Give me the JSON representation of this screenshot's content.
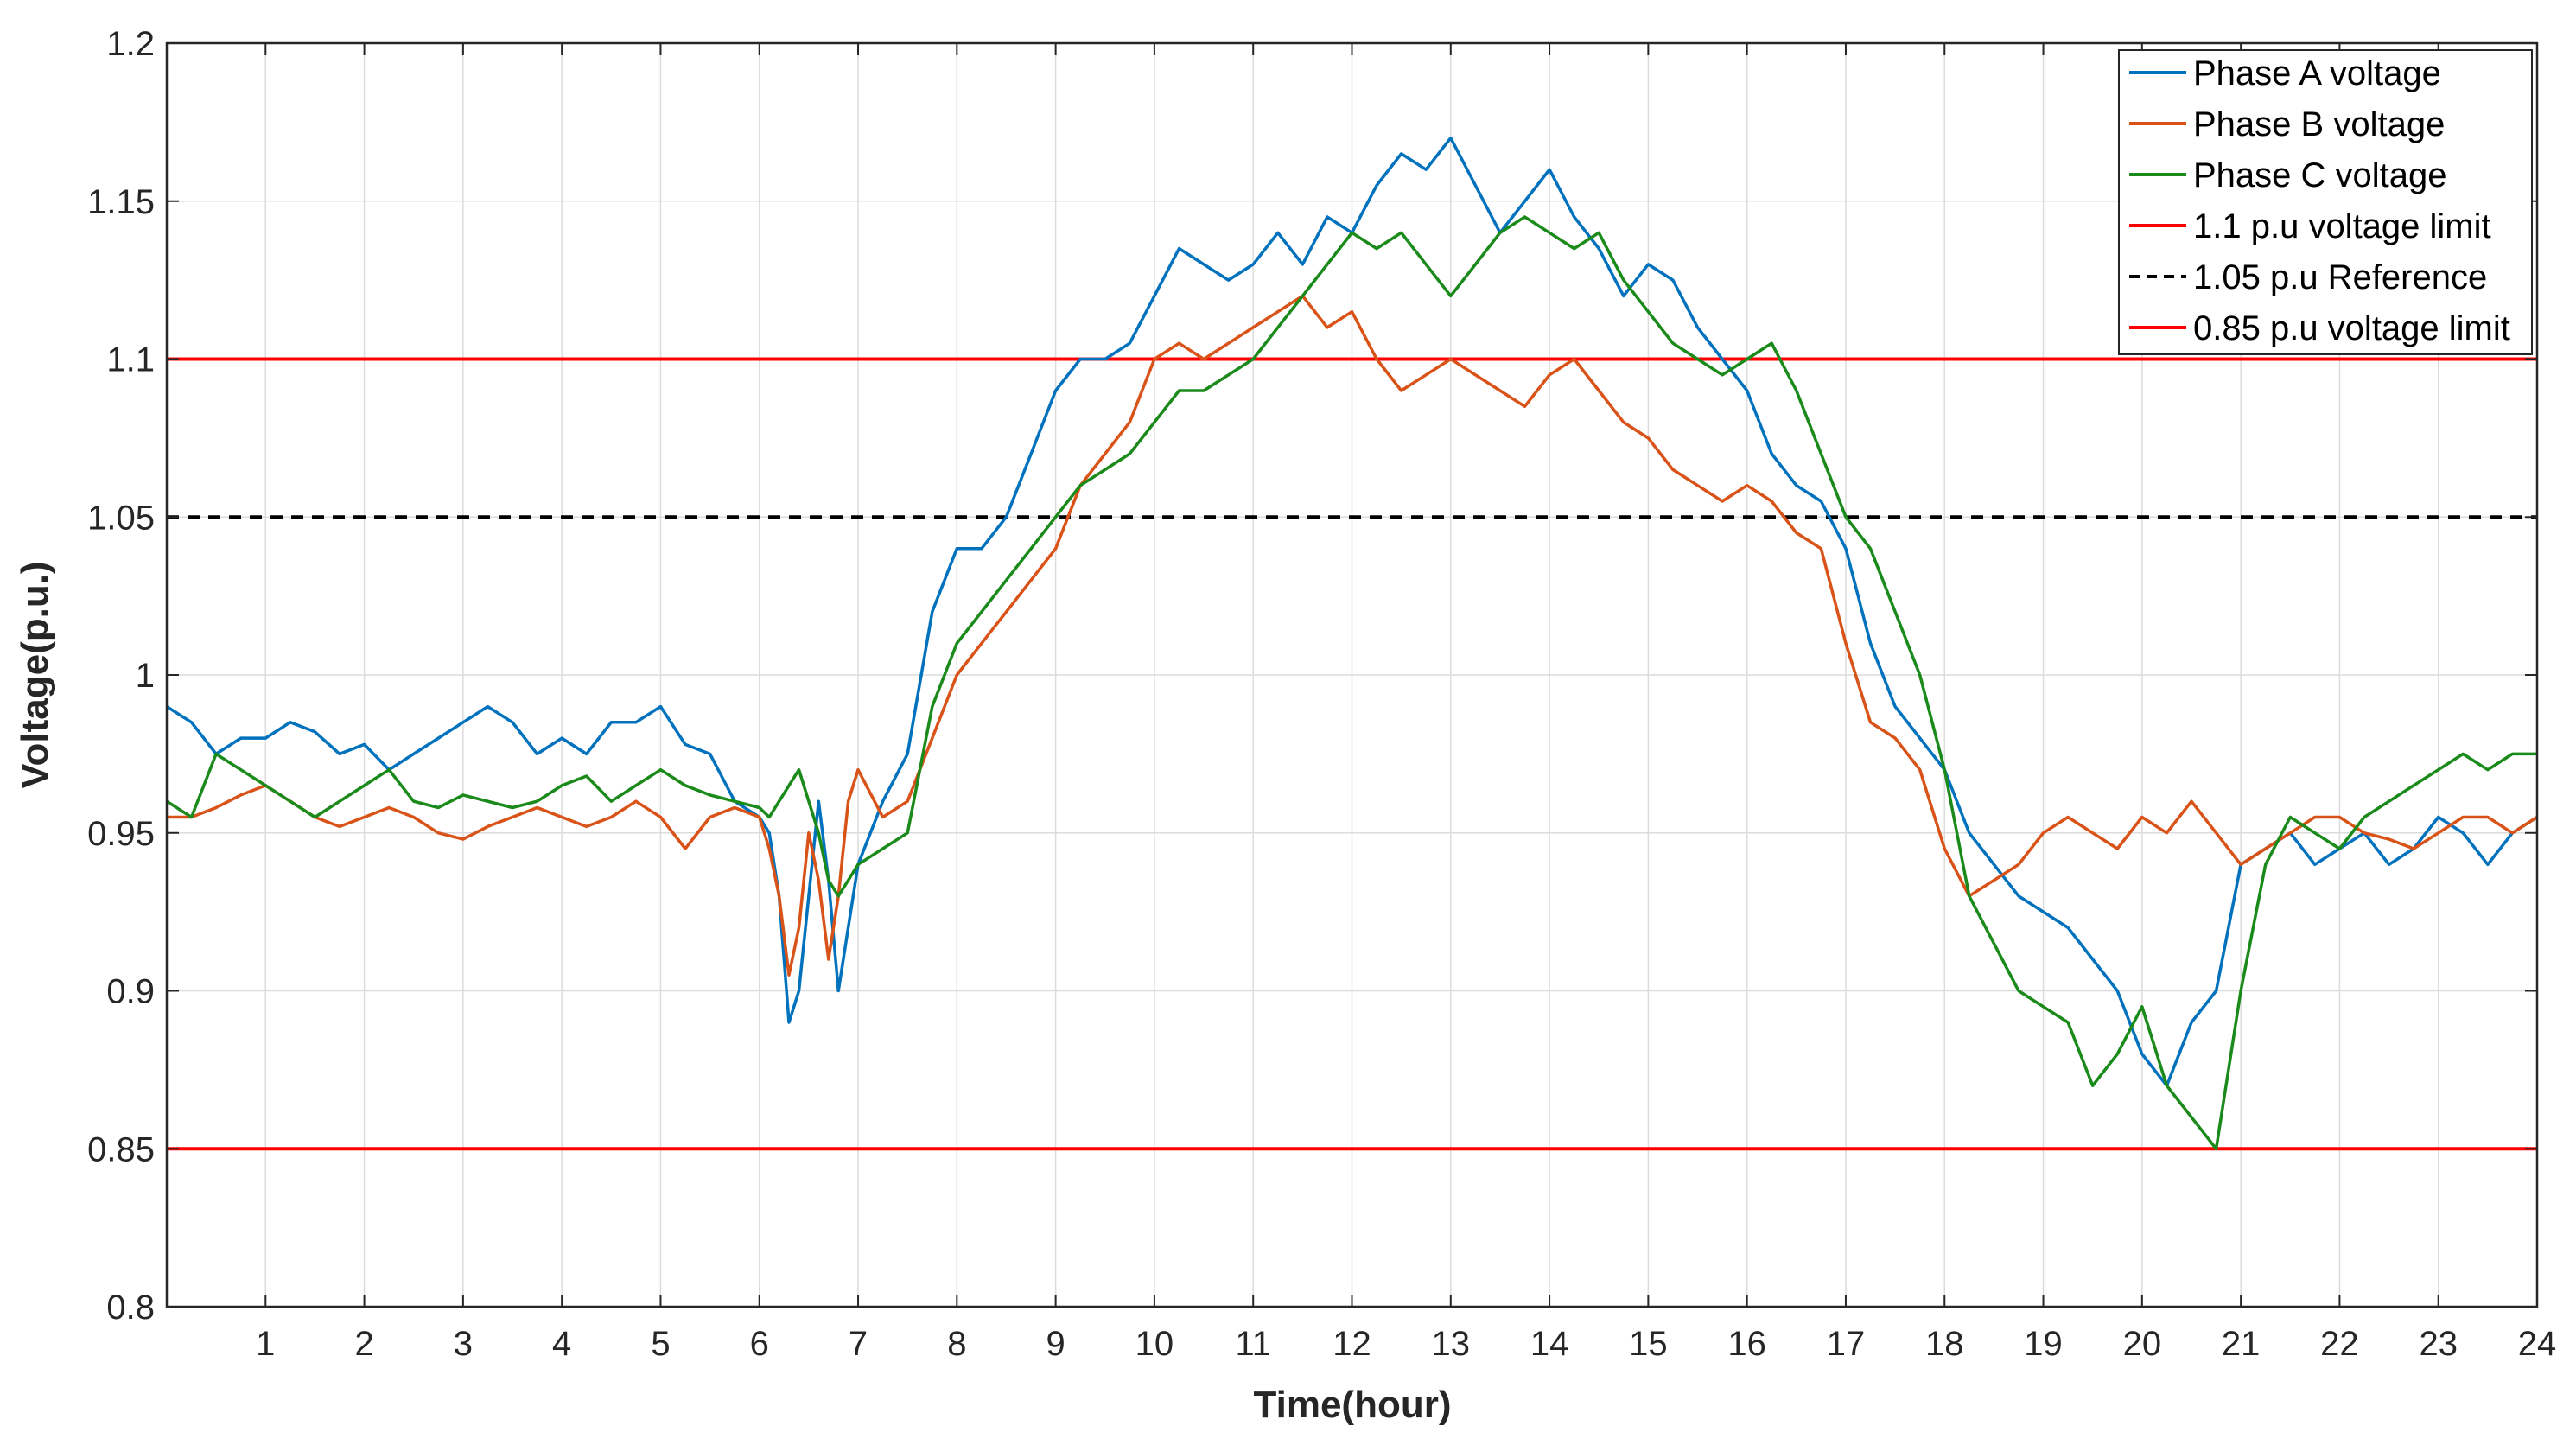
{
  "chart_data": {
    "type": "line",
    "title": "",
    "xlabel": "Time(hour)",
    "ylabel": "Voltage(p.u.)",
    "xlim": [
      0,
      24
    ],
    "ylim": [
      0.8,
      1.2
    ],
    "xticks": [
      1,
      2,
      3,
      4,
      5,
      6,
      7,
      8,
      9,
      10,
      11,
      12,
      13,
      14,
      15,
      16,
      17,
      18,
      19,
      20,
      21,
      22,
      23,
      24
    ],
    "xtick_labels": [
      "1",
      "2",
      "3",
      "4",
      "5",
      "6",
      "7",
      "8",
      "9",
      "10",
      "11",
      "12",
      "13",
      "14",
      "15",
      "16",
      "17",
      "18",
      "19",
      "20",
      "21",
      "22",
      "23",
      "24"
    ],
    "yticks": [
      0.8,
      0.85,
      0.9,
      0.95,
      1,
      1.05,
      1.1,
      1.15,
      1.2
    ],
    "ytick_labels": [
      "0.8",
      "0.85",
      "0.9",
      "0.95",
      "1",
      "1.05",
      "1.1",
      "1.15",
      "1.2"
    ],
    "grid": true,
    "legend_position": "top-right",
    "colors": {
      "phase_a": "#0072BD",
      "phase_b": "#D95319",
      "phase_c": "#1A8A1A",
      "limit": "#FF0000",
      "reference": "#000000"
    },
    "series": [
      {
        "name": "Phase A voltage",
        "color": "#0072BD",
        "style": "solid",
        "x": [
          0,
          0.25,
          0.5,
          0.75,
          1,
          1.25,
          1.5,
          1.75,
          2,
          2.25,
          2.5,
          2.75,
          3,
          3.25,
          3.5,
          3.75,
          4,
          4.25,
          4.5,
          4.75,
          5,
          5.25,
          5.5,
          5.75,
          6,
          6.1,
          6.2,
          6.3,
          6.4,
          6.5,
          6.6,
          6.7,
          6.8,
          6.9,
          7,
          7.25,
          7.5,
          7.75,
          8,
          8.25,
          8.5,
          8.75,
          9,
          9.25,
          9.5,
          9.75,
          10,
          10.25,
          10.5,
          10.75,
          11,
          11.25,
          11.5,
          11.75,
          12,
          12.25,
          12.5,
          12.75,
          13,
          13.25,
          13.5,
          13.75,
          14,
          14.25,
          14.5,
          14.75,
          15,
          15.25,
          15.5,
          15.75,
          16,
          16.25,
          16.5,
          16.75,
          17,
          17.25,
          17.5,
          17.75,
          18,
          18.25,
          18.5,
          18.75,
          19,
          19.25,
          19.5,
          19.75,
          20,
          20.25,
          20.5,
          20.75,
          21,
          21.25,
          21.5,
          21.75,
          22,
          22.25,
          22.5,
          22.75,
          23,
          23.25,
          23.5,
          23.75,
          24
        ],
        "values": [
          0.99,
          0.985,
          0.975,
          0.98,
          0.98,
          0.985,
          0.982,
          0.975,
          0.978,
          0.97,
          0.975,
          0.98,
          0.985,
          0.99,
          0.985,
          0.975,
          0.98,
          0.975,
          0.985,
          0.985,
          0.99,
          0.978,
          0.975,
          0.96,
          0.955,
          0.95,
          0.93,
          0.89,
          0.9,
          0.93,
          0.96,
          0.935,
          0.9,
          0.92,
          0.94,
          0.96,
          0.975,
          1.02,
          1.04,
          1.04,
          1.05,
          1.07,
          1.09,
          1.1,
          1.1,
          1.105,
          1.12,
          1.135,
          1.13,
          1.125,
          1.13,
          1.14,
          1.13,
          1.145,
          1.14,
          1.155,
          1.165,
          1.16,
          1.17,
          1.155,
          1.14,
          1.15,
          1.16,
          1.145,
          1.135,
          1.12,
          1.13,
          1.125,
          1.11,
          1.1,
          1.09,
          1.07,
          1.06,
          1.055,
          1.04,
          1.01,
          0.99,
          0.98,
          0.97,
          0.95,
          0.94,
          0.93,
          0.925,
          0.92,
          0.91,
          0.9,
          0.88,
          0.87,
          0.89,
          0.9,
          0.94,
          0.945,
          0.95,
          0.94,
          0.945,
          0.95,
          0.94,
          0.945,
          0.955,
          0.95,
          0.94,
          0.95,
          0.955
        ]
      },
      {
        "name": "Phase B voltage",
        "color": "#D95319",
        "style": "solid",
        "x": [
          0,
          0.25,
          0.5,
          0.75,
          1,
          1.25,
          1.5,
          1.75,
          2,
          2.25,
          2.5,
          2.75,
          3,
          3.25,
          3.5,
          3.75,
          4,
          4.25,
          4.5,
          4.75,
          5,
          5.25,
          5.5,
          5.75,
          6,
          6.1,
          6.2,
          6.3,
          6.4,
          6.5,
          6.6,
          6.7,
          6.8,
          6.9,
          7,
          7.25,
          7.5,
          7.75,
          8,
          8.25,
          8.5,
          8.75,
          9,
          9.25,
          9.5,
          9.75,
          10,
          10.25,
          10.5,
          10.75,
          11,
          11.25,
          11.5,
          11.75,
          12,
          12.25,
          12.5,
          12.75,
          13,
          13.25,
          13.5,
          13.75,
          14,
          14.25,
          14.5,
          14.75,
          15,
          15.25,
          15.5,
          15.75,
          16,
          16.25,
          16.5,
          16.75,
          17,
          17.25,
          17.5,
          17.75,
          18,
          18.25,
          18.5,
          18.75,
          19,
          19.25,
          19.5,
          19.75,
          20,
          20.25,
          20.5,
          20.75,
          21,
          21.25,
          21.5,
          21.75,
          22,
          22.25,
          22.5,
          22.75,
          23,
          23.25,
          23.5,
          23.75,
          24
        ],
        "values": [
          0.955,
          0.955,
          0.958,
          0.962,
          0.965,
          0.96,
          0.955,
          0.952,
          0.955,
          0.958,
          0.955,
          0.95,
          0.948,
          0.952,
          0.955,
          0.958,
          0.955,
          0.952,
          0.955,
          0.96,
          0.955,
          0.945,
          0.955,
          0.958,
          0.955,
          0.945,
          0.93,
          0.905,
          0.92,
          0.95,
          0.935,
          0.91,
          0.93,
          0.96,
          0.97,
          0.955,
          0.96,
          0.98,
          1.0,
          1.01,
          1.02,
          1.03,
          1.04,
          1.06,
          1.07,
          1.08,
          1.1,
          1.105,
          1.1,
          1.105,
          1.11,
          1.115,
          1.12,
          1.11,
          1.115,
          1.1,
          1.09,
          1.095,
          1.1,
          1.095,
          1.09,
          1.085,
          1.095,
          1.1,
          1.09,
          1.08,
          1.075,
          1.065,
          1.06,
          1.055,
          1.06,
          1.055,
          1.045,
          1.04,
          1.01,
          0.985,
          0.98,
          0.97,
          0.945,
          0.93,
          0.935,
          0.94,
          0.95,
          0.955,
          0.95,
          0.945,
          0.955,
          0.95,
          0.96,
          0.95,
          0.94,
          0.945,
          0.95,
          0.955,
          0.955,
          0.95,
          0.948,
          0.945,
          0.95,
          0.955,
          0.955,
          0.95,
          0.955
        ]
      },
      {
        "name": "Phase C voltage",
        "color": "#1A8A1A",
        "style": "solid",
        "x": [
          0,
          0.25,
          0.5,
          0.75,
          1,
          1.25,
          1.5,
          1.75,
          2,
          2.25,
          2.5,
          2.75,
          3,
          3.25,
          3.5,
          3.75,
          4,
          4.25,
          4.5,
          4.75,
          5,
          5.25,
          5.5,
          5.75,
          6,
          6.1,
          6.2,
          6.3,
          6.4,
          6.5,
          6.6,
          6.7,
          6.8,
          6.9,
          7,
          7.25,
          7.5,
          7.75,
          8,
          8.25,
          8.5,
          8.75,
          9,
          9.25,
          9.5,
          9.75,
          10,
          10.25,
          10.5,
          10.75,
          11,
          11.25,
          11.5,
          11.75,
          12,
          12.25,
          12.5,
          12.75,
          13,
          13.25,
          13.5,
          13.75,
          14,
          14.25,
          14.5,
          14.75,
          15,
          15.25,
          15.5,
          15.75,
          16,
          16.25,
          16.5,
          16.75,
          17,
          17.25,
          17.5,
          17.75,
          18,
          18.25,
          18.5,
          18.75,
          19,
          19.25,
          19.5,
          19.75,
          20,
          20.25,
          20.5,
          20.75,
          21,
          21.25,
          21.5,
          21.75,
          22,
          22.25,
          22.5,
          22.75,
          23,
          23.25,
          23.5,
          23.75,
          24
        ],
        "values": [
          0.96,
          0.955,
          0.975,
          0.97,
          0.965,
          0.96,
          0.955,
          0.96,
          0.965,
          0.97,
          0.96,
          0.958,
          0.962,
          0.96,
          0.958,
          0.96,
          0.965,
          0.968,
          0.96,
          0.965,
          0.97,
          0.965,
          0.962,
          0.96,
          0.958,
          0.955,
          0.96,
          0.965,
          0.97,
          0.96,
          0.95,
          0.935,
          0.93,
          0.935,
          0.94,
          0.945,
          0.95,
          0.99,
          1.01,
          1.02,
          1.03,
          1.04,
          1.05,
          1.06,
          1.065,
          1.07,
          1.08,
          1.09,
          1.09,
          1.095,
          1.1,
          1.11,
          1.12,
          1.13,
          1.14,
          1.135,
          1.14,
          1.13,
          1.12,
          1.13,
          1.14,
          1.145,
          1.14,
          1.135,
          1.14,
          1.125,
          1.115,
          1.105,
          1.1,
          1.095,
          1.1,
          1.105,
          1.09,
          1.07,
          1.05,
          1.04,
          1.02,
          1.0,
          0.97,
          0.93,
          0.915,
          0.9,
          0.895,
          0.89,
          0.87,
          0.88,
          0.895,
          0.87,
          0.86,
          0.85,
          0.9,
          0.94,
          0.955,
          0.95,
          0.945,
          0.955,
          0.96,
          0.965,
          0.97,
          0.975,
          0.97,
          0.975,
          0.975
        ]
      },
      {
        "name": "1.1 p.u voltage limit",
        "color": "#FF0000",
        "style": "solid",
        "x": [
          0,
          24
        ],
        "values": [
          1.1,
          1.1
        ]
      },
      {
        "name": "1.05 p.u Reference",
        "color": "#000000",
        "style": "dashed",
        "x": [
          0,
          24
        ],
        "values": [
          1.05,
          1.05
        ]
      },
      {
        "name": "0.85 p.u voltage limit",
        "color": "#FF0000",
        "style": "solid",
        "x": [
          0,
          24
        ],
        "values": [
          0.85,
          0.85
        ]
      }
    ]
  }
}
